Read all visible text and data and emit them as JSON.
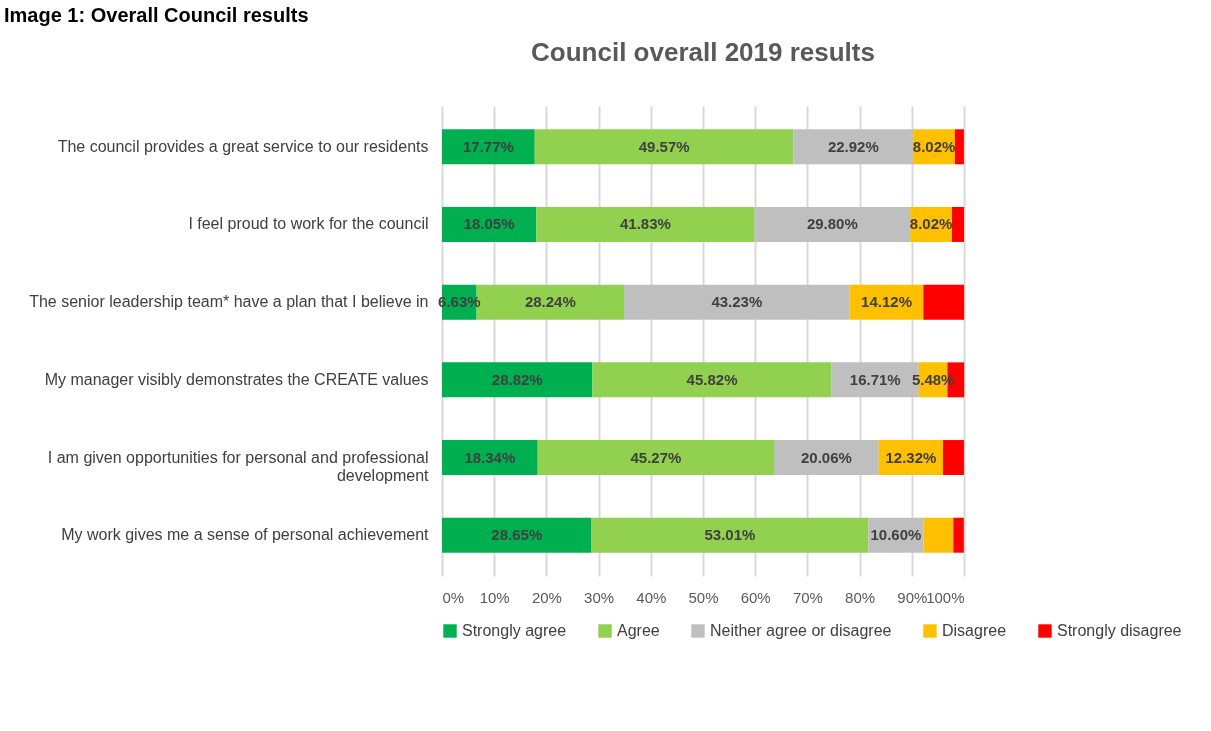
{
  "chart_data": {
    "type": "bar",
    "orientation": "horizontal",
    "stacked": true,
    "title": "Council overall 2019 results",
    "annotations": [
      "Image 1: Overall Council results"
    ],
    "categories": [
      "The council provides a great service to our residents",
      "I feel proud to work for the council",
      "The senior leadership team* have a plan that I believe in",
      "My manager visibly demonstrates the CREATE values",
      "I am given opportunities for personal and professional development",
      "My work gives me a sense of personal achievement"
    ],
    "series": [
      {
        "name": "Strongly agree",
        "color": "#00b050",
        "values": [
          17.77,
          18.05,
          6.63,
          28.82,
          18.34,
          28.65
        ],
        "value_labels": [
          "17.77%",
          "18.05%",
          "6.63%",
          "28.82%",
          "18.34%",
          "28.65%"
        ]
      },
      {
        "name": "Agree",
        "color": "#92d050",
        "values": [
          49.57,
          41.83,
          28.24,
          45.82,
          45.27,
          53.01
        ],
        "value_labels": [
          "49.57%",
          "41.83%",
          "28.24%",
          "45.82%",
          "45.27%",
          "53.01%"
        ]
      },
      {
        "name": "Neither agree or disagree",
        "color": "#bfbfbf",
        "values": [
          22.92,
          29.8,
          43.23,
          16.71,
          20.06,
          10.6
        ],
        "value_labels": [
          "22.92%",
          "29.80%",
          "43.23%",
          "16.71%",
          "20.06%",
          "10.60%"
        ]
      },
      {
        "name": "Disagree",
        "color": "#ffc000",
        "values": [
          8.02,
          8.02,
          14.12,
          5.48,
          12.32,
          5.7
        ],
        "value_labels": [
          "8.02%",
          "8.02%",
          "14.12%",
          "5.48%",
          "12.32%",
          null
        ]
      },
      {
        "name": "Strongly disagree",
        "color": "#ff0000",
        "values": [
          1.7,
          2.3,
          7.8,
          3.2,
          4.0,
          2.0
        ],
        "value_labels": [
          null,
          null,
          null,
          null,
          null,
          null
        ]
      }
    ],
    "xlim": [
      0,
      100
    ],
    "xticks": [
      {
        "value": 0,
        "label": "0%"
      },
      {
        "value": 10,
        "label": "10%"
      },
      {
        "value": 20,
        "label": "20%"
      },
      {
        "value": 30,
        "label": "30%"
      },
      {
        "value": 40,
        "label": "40%"
      },
      {
        "value": 50,
        "label": "50%"
      },
      {
        "value": 60,
        "label": "60%"
      },
      {
        "value": 70,
        "label": "70%"
      },
      {
        "value": 80,
        "label": "80%"
      },
      {
        "value": 90,
        "label": "90%"
      },
      {
        "value": 100,
        "label": "100%"
      }
    ],
    "grid": "x",
    "legend": "bottom"
  }
}
